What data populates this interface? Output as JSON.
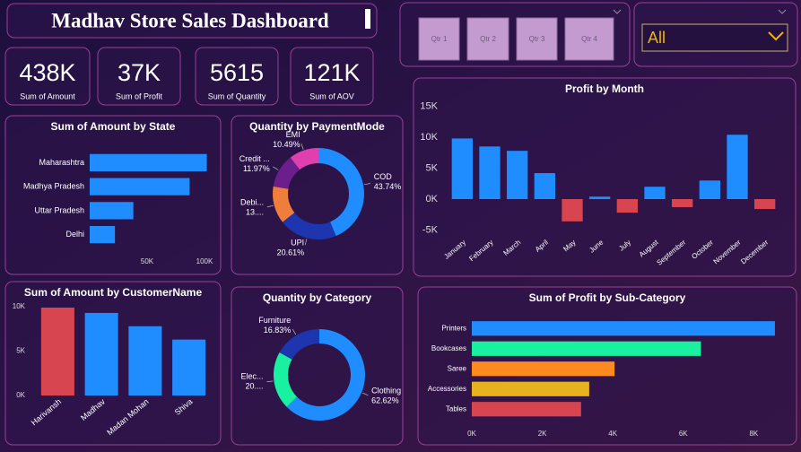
{
  "header": {
    "title": "Madhav Store Sales Dashboard"
  },
  "kpis": [
    {
      "value": "438K",
      "label": "Sum of Amount"
    },
    {
      "value": "37K",
      "label": "Sum of Profit"
    },
    {
      "value": "5615",
      "label": "Sum of Quantity"
    },
    {
      "value": "121K",
      "label": "Sum of AOV"
    }
  ],
  "quarter_slicer": {
    "options": [
      "Qtr 1",
      "Qtr 2",
      "Qtr 3",
      "Qtr 4"
    ]
  },
  "dropdown": {
    "selected": "All"
  },
  "chart_data": [
    {
      "type": "hbar",
      "title": "Sum of Amount by State",
      "categories": [
        "Maharashtra",
        "Madhya Pradesh",
        "Uttar Pradesh",
        "Delhi"
      ],
      "values": [
        102000,
        87000,
        38000,
        22000
      ],
      "color": "#1f8cff",
      "xlim": [
        0,
        105000
      ],
      "xticks": [
        {
          "value": 50000,
          "label": "50K"
        },
        {
          "value": 100000,
          "label": "100K"
        }
      ]
    },
    {
      "type": "donut",
      "title": "Quantity by PaymentMode",
      "categories": [
        "COD",
        "UPI",
        "Debi...",
        "Credit ...",
        "EMI"
      ],
      "values": [
        43.74,
        20.61,
        13.19,
        11.97,
        10.49
      ],
      "value_labels": [
        "43.74%",
        "20.61%",
        "13....",
        "11.97%",
        "10.49%"
      ],
      "colors": [
        "#1f8cff",
        "#1e35b0",
        "#ef7d3c",
        "#6b1e8c",
        "#e040ae"
      ]
    },
    {
      "type": "bar",
      "title": "Profit by Month",
      "categories": [
        "January",
        "February",
        "March",
        "April",
        "May",
        "June",
        "July",
        "August",
        "September",
        "October",
        "November",
        "December"
      ],
      "values": [
        9800,
        8500,
        7800,
        4200,
        -3600,
        400,
        -2200,
        2000,
        -1300,
        3000,
        10400,
        -1600
      ],
      "color": "#1f8cff",
      "negative_color": "#d64550",
      "ylim": [
        -6000,
        15000
      ],
      "yticks": [
        {
          "value": -5000,
          "label": "-5K"
        },
        {
          "value": 0,
          "label": "0K"
        },
        {
          "value": 5000,
          "label": "5K"
        },
        {
          "value": 10000,
          "label": "10K"
        },
        {
          "value": 15000,
          "label": "15K"
        }
      ]
    },
    {
      "type": "bar",
      "title": "Sum of Amount by CustomerName",
      "categories": [
        "Harivansh",
        "Madhav",
        "Madan Mohan",
        "Shiva"
      ],
      "values": [
        9900,
        9300,
        7800,
        6300
      ],
      "colors": [
        "#d64550",
        "#1f8cff",
        "#1f8cff",
        "#1f8cff"
      ],
      "ylim": [
        0,
        10000
      ],
      "yticks": [
        {
          "value": 0,
          "label": "0K"
        },
        {
          "value": 5000,
          "label": "5K"
        },
        {
          "value": 10000,
          "label": "10K"
        }
      ]
    },
    {
      "type": "donut",
      "title": "Quantity by Category",
      "categories": [
        "Clothing",
        "Elec...",
        "Furniture"
      ],
      "values": [
        62.62,
        20.55,
        16.83
      ],
      "value_labels": [
        "62.62%",
        "20....",
        "16.83%"
      ],
      "colors": [
        "#1f8cff",
        "#19f0a0",
        "#1e35b0"
      ]
    },
    {
      "type": "hbar",
      "title": "Sum of Profit by Sub-Category",
      "categories": [
        "Printers",
        "Bookcases",
        "Saree",
        "Accessories",
        "Tables"
      ],
      "values": [
        8600,
        6500,
        4050,
        3330,
        3100
      ],
      "colors": [
        "#1f8cff",
        "#19f0a0",
        "#ff8a1f",
        "#e6b31e",
        "#d64550"
      ],
      "xlim": [
        0,
        8800
      ],
      "xticks": [
        {
          "value": 0,
          "label": "0K"
        },
        {
          "value": 2000,
          "label": "2K"
        },
        {
          "value": 4000,
          "label": "4K"
        },
        {
          "value": 6000,
          "label": "6K"
        },
        {
          "value": 8000,
          "label": "8K"
        }
      ]
    }
  ]
}
